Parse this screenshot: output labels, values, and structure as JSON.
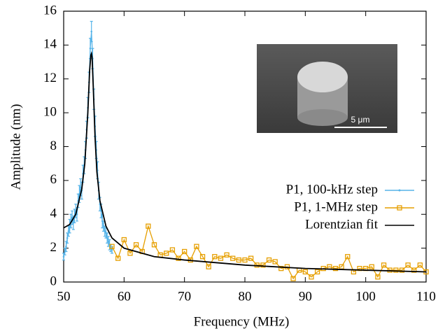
{
  "chart_data": {
    "type": "line",
    "xlabel": "Frequency (MHz)",
    "ylabel": "Amplitude (nm)",
    "xlim": [
      50,
      110
    ],
    "ylim": [
      0,
      16
    ],
    "xticks": [
      50,
      60,
      70,
      80,
      90,
      100,
      110
    ],
    "yticks": [
      0,
      2,
      4,
      6,
      8,
      10,
      12,
      14,
      16
    ],
    "legend": "center right",
    "inset_label": "5 μm",
    "series": [
      {
        "name": "P1, 100-kHz step",
        "color": "#56b4e9",
        "marker": "point",
        "x": [
          50.0,
          50.2,
          50.4,
          50.6,
          50.8,
          51.0,
          51.2,
          51.4,
          51.6,
          51.8,
          52.0,
          52.2,
          52.4,
          52.6,
          52.8,
          53.0,
          53.2,
          53.4,
          53.6,
          53.8,
          54.0,
          54.2,
          54.4,
          54.6,
          54.8,
          55.0,
          55.2,
          55.4,
          55.6,
          55.8,
          56.0,
          56.2,
          56.4,
          56.6,
          56.8,
          57.0,
          57.2,
          57.4,
          57.6,
          57.8,
          58.0
        ],
        "values": [
          1.5,
          1.8,
          2.1,
          2.6,
          3.0,
          3.3,
          3.6,
          3.8,
          3.5,
          3.9,
          4.2,
          4.0,
          4.8,
          5.2,
          5.6,
          5.4,
          6.4,
          6.9,
          7.8,
          9.0,
          10.3,
          11.8,
          13.8,
          14.8,
          13.2,
          10.8,
          9.2,
          7.8,
          6.6,
          5.4,
          4.6,
          4.2,
          3.6,
          3.3,
          3.0,
          2.9,
          2.6,
          2.4,
          2.2,
          2.0,
          1.9
        ],
        "errors": [
          0.2,
          0.2,
          0.3,
          0.3,
          0.3,
          0.4,
          0.4,
          0.4,
          0.4,
          0.4,
          0.4,
          0.4,
          0.4,
          0.5,
          0.5,
          0.5,
          0.5,
          0.5,
          0.5,
          0.5,
          0.6,
          0.6,
          0.6,
          0.6,
          0.6,
          0.6,
          0.6,
          0.5,
          0.5,
          0.5,
          0.4,
          0.4,
          0.4,
          0.3,
          0.3,
          0.3,
          0.3,
          0.3,
          0.3,
          0.2,
          0.2
        ]
      },
      {
        "name": "P1, 1-MHz step",
        "color": "#e69f00",
        "marker": "square",
        "x": [
          58,
          59,
          60,
          61,
          62,
          63,
          64,
          65,
          66,
          67,
          68,
          69,
          70,
          71,
          72,
          73,
          74,
          75,
          76,
          77,
          78,
          79,
          80,
          81,
          82,
          83,
          84,
          85,
          86,
          87,
          88,
          89,
          90,
          91,
          92,
          93,
          94,
          95,
          96,
          97,
          98,
          99,
          100,
          101,
          102,
          103,
          104,
          105,
          106,
          107,
          108,
          109,
          110
        ],
        "values": [
          2.1,
          1.4,
          2.5,
          1.7,
          2.2,
          1.8,
          3.3,
          2.2,
          1.6,
          1.7,
          1.9,
          1.4,
          1.8,
          1.3,
          2.1,
          1.5,
          0.9,
          1.5,
          1.4,
          1.6,
          1.4,
          1.3,
          1.3,
          1.4,
          1.0,
          1.0,
          1.3,
          1.2,
          0.8,
          0.9,
          0.2,
          0.7,
          0.6,
          0.3,
          0.6,
          0.8,
          0.9,
          0.8,
          0.9,
          1.5,
          0.6,
          0.8,
          0.8,
          0.9,
          0.3,
          1.0,
          0.7,
          0.7,
          0.7,
          1.0,
          0.7,
          1.0,
          0.6
        ]
      },
      {
        "name": "Lorentzian fit",
        "color": "#000000",
        "marker": "none",
        "x": [
          50,
          51,
          52,
          53,
          53.5,
          54,
          54.3,
          54.5,
          54.6,
          54.7,
          54.9,
          55.2,
          55.5,
          56,
          57,
          58,
          60,
          65,
          70,
          80,
          90,
          100,
          110
        ],
        "values": [
          3.2,
          3.4,
          4.0,
          5.5,
          7.0,
          10.0,
          12.5,
          13.4,
          13.5,
          13.3,
          11.5,
          8.5,
          6.5,
          4.8,
          3.3,
          2.6,
          2.0,
          1.5,
          1.3,
          1.0,
          0.8,
          0.7,
          0.6
        ]
      }
    ]
  }
}
